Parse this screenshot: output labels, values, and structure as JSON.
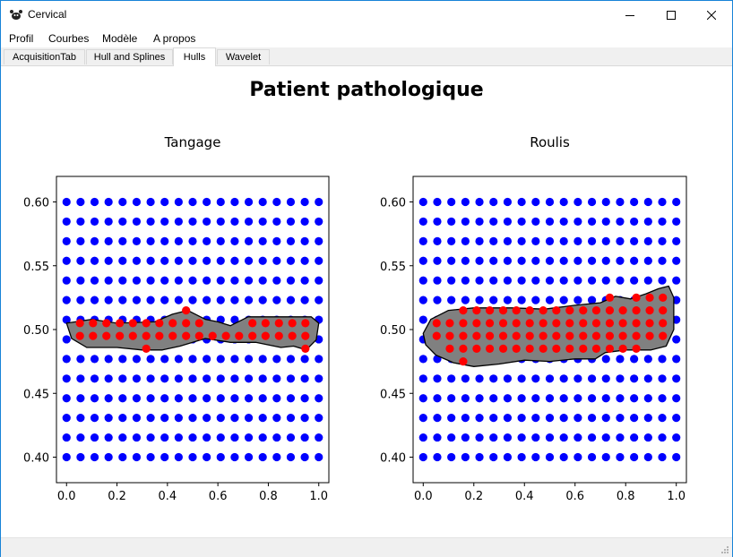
{
  "window": {
    "title": "Cervical"
  },
  "menu": [
    {
      "label": "Profil"
    },
    {
      "label": "Courbes"
    },
    {
      "label": "Modèle"
    },
    {
      "label": "A propos"
    }
  ],
  "tabs": [
    {
      "label": "AcquisitionTab",
      "active": false
    },
    {
      "label": "Hull and Splines",
      "active": false
    },
    {
      "label": "Hulls",
      "active": true
    },
    {
      "label": "Wavelet",
      "active": false
    }
  ],
  "figure": {
    "suptitle": "Patient pathologique"
  },
  "colors": {
    "grid_points": "#0000ff",
    "inside_points": "#ff0000",
    "hull_fill": "#808080",
    "hull_edge": "#000000"
  },
  "chart_data": [
    {
      "type": "scatter",
      "title": "Tangage",
      "xlim": [
        -0.04,
        1.04
      ],
      "ylim": [
        0.38,
        0.62
      ],
      "xticks": [
        "0.0",
        "0.2",
        "0.4",
        "0.6",
        "0.8",
        "1.0"
      ],
      "yticks": [
        "0.40",
        "0.45",
        "0.50",
        "0.55",
        "0.60"
      ],
      "grid_points": {
        "x_start": 0.0,
        "x_end": 1.0,
        "x_count": 19,
        "y_start": 0.4,
        "y_end": 0.6,
        "y_count": 14
      },
      "hull": [
        [
          0.0,
          0.505
        ],
        [
          0.1,
          0.508
        ],
        [
          0.2,
          0.505
        ],
        [
          0.35,
          0.506
        ],
        [
          0.42,
          0.512
        ],
        [
          0.48,
          0.515
        ],
        [
          0.55,
          0.508
        ],
        [
          0.6,
          0.506
        ],
        [
          0.65,
          0.503
        ],
        [
          0.72,
          0.51
        ],
        [
          0.85,
          0.51
        ],
        [
          0.97,
          0.51
        ],
        [
          1.0,
          0.505
        ],
        [
          0.99,
          0.492
        ],
        [
          0.95,
          0.484
        ],
        [
          0.9,
          0.487
        ],
        [
          0.85,
          0.486
        ],
        [
          0.75,
          0.49
        ],
        [
          0.65,
          0.49
        ],
        [
          0.55,
          0.493
        ],
        [
          0.45,
          0.487
        ],
        [
          0.38,
          0.484
        ],
        [
          0.3,
          0.484
        ],
        [
          0.2,
          0.486
        ],
        [
          0.08,
          0.486
        ],
        [
          0.02,
          0.493
        ]
      ],
      "inside_points": [
        [
          0.053,
          0.505
        ],
        [
          0.105,
          0.505
        ],
        [
          0.158,
          0.505
        ],
        [
          0.211,
          0.505
        ],
        [
          0.263,
          0.505
        ],
        [
          0.316,
          0.505
        ],
        [
          0.368,
          0.505
        ],
        [
          0.421,
          0.505
        ],
        [
          0.474,
          0.505
        ],
        [
          0.526,
          0.505
        ],
        [
          0.737,
          0.505
        ],
        [
          0.789,
          0.505
        ],
        [
          0.842,
          0.505
        ],
        [
          0.895,
          0.505
        ],
        [
          0.947,
          0.505
        ],
        [
          0.053,
          0.495
        ],
        [
          0.105,
          0.495
        ],
        [
          0.158,
          0.495
        ],
        [
          0.211,
          0.495
        ],
        [
          0.263,
          0.495
        ],
        [
          0.316,
          0.495
        ],
        [
          0.368,
          0.495
        ],
        [
          0.421,
          0.495
        ],
        [
          0.474,
          0.495
        ],
        [
          0.526,
          0.495
        ],
        [
          0.579,
          0.495
        ],
        [
          0.632,
          0.495
        ],
        [
          0.684,
          0.495
        ],
        [
          0.737,
          0.495
        ],
        [
          0.789,
          0.495
        ],
        [
          0.842,
          0.495
        ],
        [
          0.895,
          0.495
        ],
        [
          0.947,
          0.495
        ],
        [
          0.316,
          0.485
        ],
        [
          0.947,
          0.485
        ],
        [
          0.474,
          0.515
        ]
      ]
    },
    {
      "type": "scatter",
      "title": "Roulis",
      "xlim": [
        -0.04,
        1.04
      ],
      "ylim": [
        0.38,
        0.62
      ],
      "xticks": [
        "0.0",
        "0.2",
        "0.4",
        "0.6",
        "0.8",
        "1.0"
      ],
      "yticks": [
        "0.40",
        "0.45",
        "0.50",
        "0.55",
        "0.60"
      ],
      "grid_points": {
        "x_start": 0.0,
        "x_end": 1.0,
        "x_count": 19,
        "y_start": 0.4,
        "y_end": 0.6,
        "y_count": 14
      },
      "hull": [
        [
          0.0,
          0.497
        ],
        [
          0.03,
          0.508
        ],
        [
          0.1,
          0.515
        ],
        [
          0.2,
          0.517
        ],
        [
          0.35,
          0.517
        ],
        [
          0.48,
          0.516
        ],
        [
          0.6,
          0.519
        ],
        [
          0.7,
          0.521
        ],
        [
          0.76,
          0.526
        ],
        [
          0.82,
          0.524
        ],
        [
          0.88,
          0.528
        ],
        [
          0.93,
          0.532
        ],
        [
          0.97,
          0.534
        ],
        [
          0.99,
          0.525
        ],
        [
          0.99,
          0.5
        ],
        [
          0.96,
          0.487
        ],
        [
          0.9,
          0.484
        ],
        [
          0.8,
          0.484
        ],
        [
          0.72,
          0.482
        ],
        [
          0.68,
          0.477
        ],
        [
          0.6,
          0.477
        ],
        [
          0.5,
          0.475
        ],
        [
          0.4,
          0.476
        ],
        [
          0.3,
          0.473
        ],
        [
          0.2,
          0.471
        ],
        [
          0.12,
          0.474
        ],
        [
          0.05,
          0.48
        ],
        [
          0.01,
          0.488
        ]
      ],
      "inside_points": [
        [
          0.158,
          0.515
        ],
        [
          0.211,
          0.515
        ],
        [
          0.263,
          0.515
        ],
        [
          0.316,
          0.515
        ],
        [
          0.368,
          0.515
        ],
        [
          0.421,
          0.515
        ],
        [
          0.474,
          0.515
        ],
        [
          0.526,
          0.515
        ],
        [
          0.579,
          0.515
        ],
        [
          0.632,
          0.515
        ],
        [
          0.684,
          0.515
        ],
        [
          0.737,
          0.515
        ],
        [
          0.789,
          0.515
        ],
        [
          0.842,
          0.515
        ],
        [
          0.895,
          0.515
        ],
        [
          0.947,
          0.515
        ],
        [
          0.737,
          0.525
        ],
        [
          0.842,
          0.525
        ],
        [
          0.895,
          0.525
        ],
        [
          0.947,
          0.525
        ],
        [
          0.053,
          0.505
        ],
        [
          0.105,
          0.505
        ],
        [
          0.158,
          0.505
        ],
        [
          0.211,
          0.505
        ],
        [
          0.263,
          0.505
        ],
        [
          0.316,
          0.505
        ],
        [
          0.368,
          0.505
        ],
        [
          0.421,
          0.505
        ],
        [
          0.474,
          0.505
        ],
        [
          0.526,
          0.505
        ],
        [
          0.579,
          0.505
        ],
        [
          0.632,
          0.505
        ],
        [
          0.684,
          0.505
        ],
        [
          0.737,
          0.505
        ],
        [
          0.789,
          0.505
        ],
        [
          0.842,
          0.505
        ],
        [
          0.895,
          0.505
        ],
        [
          0.947,
          0.505
        ],
        [
          0.053,
          0.495
        ],
        [
          0.105,
          0.495
        ],
        [
          0.158,
          0.495
        ],
        [
          0.211,
          0.495
        ],
        [
          0.263,
          0.495
        ],
        [
          0.316,
          0.495
        ],
        [
          0.368,
          0.495
        ],
        [
          0.421,
          0.495
        ],
        [
          0.474,
          0.495
        ],
        [
          0.526,
          0.495
        ],
        [
          0.579,
          0.495
        ],
        [
          0.632,
          0.495
        ],
        [
          0.684,
          0.495
        ],
        [
          0.737,
          0.495
        ],
        [
          0.789,
          0.495
        ],
        [
          0.842,
          0.495
        ],
        [
          0.895,
          0.495
        ],
        [
          0.947,
          0.495
        ],
        [
          0.105,
          0.485
        ],
        [
          0.158,
          0.485
        ],
        [
          0.211,
          0.485
        ],
        [
          0.263,
          0.485
        ],
        [
          0.316,
          0.485
        ],
        [
          0.368,
          0.485
        ],
        [
          0.421,
          0.485
        ],
        [
          0.474,
          0.485
        ],
        [
          0.526,
          0.485
        ],
        [
          0.579,
          0.485
        ],
        [
          0.632,
          0.485
        ],
        [
          0.684,
          0.485
        ],
        [
          0.737,
          0.485
        ],
        [
          0.789,
          0.485
        ],
        [
          0.842,
          0.485
        ],
        [
          0.158,
          0.475
        ]
      ]
    }
  ]
}
